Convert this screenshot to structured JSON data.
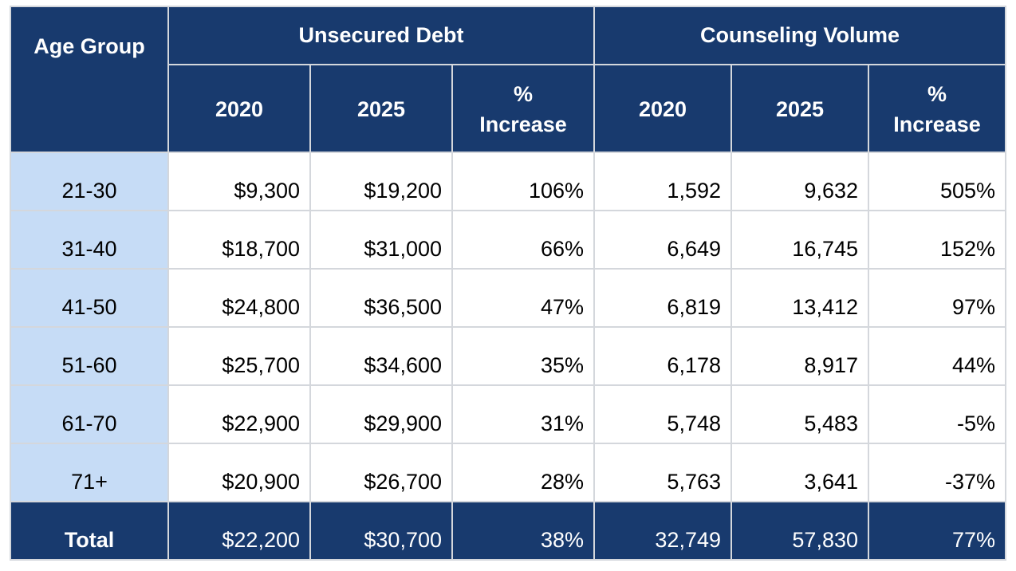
{
  "headers": {
    "age_group": "Age Group",
    "unsecured_debt": "Unsecured Debt",
    "counseling_volume": "Counseling Volume",
    "debt_2020": "2020",
    "debt_2025": "2025",
    "debt_pct_line1": "%",
    "debt_pct_line2": "Increase",
    "vol_2020": "2020",
    "vol_2025": "2025",
    "vol_pct_line1": "%",
    "vol_pct_line2": "Increase"
  },
  "rows": [
    {
      "age": "21-30",
      "debt_2020": "$9,300",
      "debt_2025": "$19,200",
      "debt_pct": "106%",
      "vol_2020": "1,592",
      "vol_2025": "9,632",
      "vol_pct": "505%"
    },
    {
      "age": "31-40",
      "debt_2020": "$18,700",
      "debt_2025": "$31,000",
      "debt_pct": "66%",
      "vol_2020": "6,649",
      "vol_2025": "16,745",
      "vol_pct": "152%"
    },
    {
      "age": "41-50",
      "debt_2020": "$24,800",
      "debt_2025": "$36,500",
      "debt_pct": "47%",
      "vol_2020": "6,819",
      "vol_2025": "13,412",
      "vol_pct": "97%"
    },
    {
      "age": "51-60",
      "debt_2020": "$25,700",
      "debt_2025": "$34,600",
      "debt_pct": "35%",
      "vol_2020": "6,178",
      "vol_2025": "8,917",
      "vol_pct": "44%"
    },
    {
      "age": "61-70",
      "debt_2020": "$22,900",
      "debt_2025": "$29,900",
      "debt_pct": "31%",
      "vol_2020": "5,748",
      "vol_2025": "5,483",
      "vol_pct": "-5%"
    },
    {
      "age": "71+",
      "debt_2020": "$20,900",
      "debt_2025": "$26,700",
      "debt_pct": "28%",
      "vol_2020": "5,763",
      "vol_2025": "3,641",
      "vol_pct": "-37%"
    }
  ],
  "total": {
    "age": "Total",
    "debt_2020": "$22,200",
    "debt_2025": "$30,700",
    "debt_pct": "38%",
    "vol_2020": "32,749",
    "vol_2025": "57,830",
    "vol_pct": "77%"
  },
  "colors": {
    "header_bg": "#183a6e",
    "age_col_bg": "#c6dcf6",
    "grid": "#d4d7dc"
  }
}
